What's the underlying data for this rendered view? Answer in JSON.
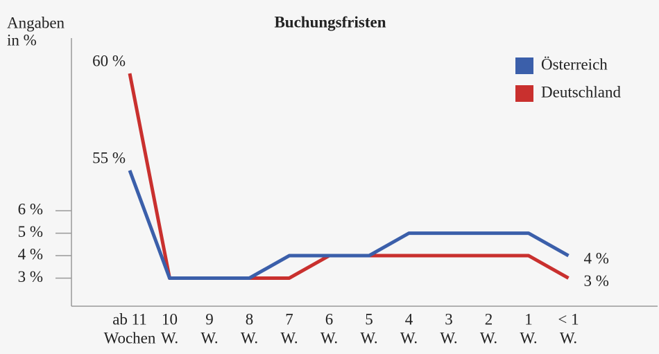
{
  "chart_data": {
    "type": "line",
    "title": "Buchungsfristen",
    "y_label": [
      "Angaben",
      "in %"
    ],
    "categories": [
      [
        "ab 11",
        "Wochen"
      ],
      [
        "10",
        "W."
      ],
      [
        "9",
        "W."
      ],
      [
        "8",
        "W."
      ],
      [
        "7",
        "W."
      ],
      [
        "6",
        "W."
      ],
      [
        "5",
        "W."
      ],
      [
        "4",
        "W."
      ],
      [
        "3",
        "W."
      ],
      [
        "2",
        "W."
      ],
      [
        "1",
        "W."
      ],
      [
        "< 1",
        "W."
      ]
    ],
    "series": [
      {
        "name": "Österreich",
        "color": "#3b5faa",
        "values": [
          55,
          3,
          3,
          3,
          4,
          4,
          4,
          5,
          5,
          5,
          5,
          4
        ],
        "value_labels": [
          "55 %",
          null,
          null,
          null,
          null,
          null,
          null,
          null,
          null,
          null,
          null,
          "4 %"
        ]
      },
      {
        "name": "Deutschland",
        "color": "#c9302e",
        "values": [
          60,
          3,
          3,
          3,
          3,
          4,
          4,
          4,
          4,
          4,
          4,
          3
        ],
        "value_labels": [
          "60 %",
          null,
          null,
          null,
          null,
          null,
          null,
          null,
          null,
          null,
          null,
          "3 %"
        ]
      }
    ],
    "ylim": [
      1.75,
      61
    ],
    "ybreak": [
      6.5,
      53.5
    ],
    "yticks": [
      {
        "value": 3,
        "label": "3 %"
      },
      {
        "value": 4,
        "label": "4 %"
      },
      {
        "value": 5,
        "label": "5 %"
      },
      {
        "value": 6,
        "label": "6 %"
      }
    ],
    "legend": "top-right"
  }
}
